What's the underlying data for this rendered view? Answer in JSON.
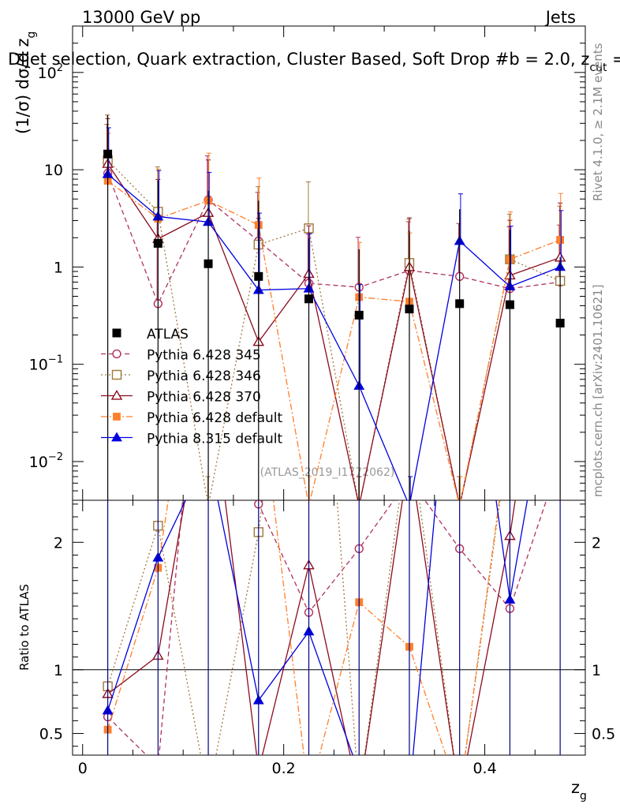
{
  "header": {
    "left": "13000 GeV pp",
    "right": "Jets"
  },
  "chart_data": {
    "type": "scatter",
    "title": "Dijet selection, Quark extraction, Cluster Based, Soft Drop #b = 2.0, z_cut =",
    "title_parts": {
      "main": "Dijet selection, Quark extraction, Cluster Based, Soft Drop #b = 2.0, z",
      "sub": "cut",
      "tail": " ="
    },
    "ylabel_parts": {
      "main": "(1/σ) dσ/d z",
      "sub": "g"
    },
    "xlabel_parts": {
      "main": "z",
      "sub": "g"
    },
    "ratio_ylabel": "Ratio to ATLAS",
    "analysis_tag": "(ATLAS_2019_I1772062)",
    "side_labels": {
      "rivet": "Rivet 4.1.0, ≥ 2.1M events",
      "mcplots": "mcplots.cern.ch [arXiv:2401.10621]"
    },
    "x_range": [
      -0.01,
      0.5
    ],
    "y_range": [
      0.004,
      300
    ],
    "y_scale": "log",
    "ratio_range": [
      0.33,
      2.33
    ],
    "x_ticks": [
      0,
      0.2,
      0.4
    ],
    "x_tick_labels": [
      "0",
      "0.2",
      "0.4"
    ],
    "y_ticks": [
      0.01,
      0.1,
      1,
      10,
      100
    ],
    "y_tick_labels": [
      {
        "base": "10",
        "exp": "−2"
      },
      {
        "base": "10",
        "exp": "−1"
      },
      {
        "base": "1",
        "exp": ""
      },
      {
        "base": "10",
        "exp": ""
      },
      {
        "base": "10",
        "exp": "2"
      }
    ],
    "ratio_ticks": [
      0.5,
      1,
      2
    ],
    "ratio_tick_labels": [
      "0.5",
      "1",
      "2"
    ],
    "legend_position": "bottom-left",
    "x": [
      0.025,
      0.075,
      0.125,
      0.175,
      0.225,
      0.275,
      0.325,
      0.375,
      0.425,
      0.475
    ],
    "data": {
      "name": "ATLAS",
      "values": [
        14.5,
        1.75,
        1.08,
        0.8,
        0.47,
        0.32,
        0.37,
        0.42,
        0.41,
        0.265
      ],
      "err_up": [
        22,
        6,
        5,
        4,
        1.5,
        1.2,
        2,
        3.5,
        2,
        1
      ],
      "err_down": [
        0.001,
        0.001,
        0.001,
        0.001,
        0.001,
        0.001,
        0.001,
        0.001,
        0.001,
        0.001
      ]
    },
    "series": [
      {
        "name": "Pythia 6.428 345",
        "color": "#b03060",
        "dash": "6,4",
        "marker": "open-circle",
        "values": [
          9.2,
          0.42,
          4.9,
          1.85,
          0.68,
          0.62,
          0.92,
          0.8,
          0.6,
          0.7
        ],
        "err_up": [
          20,
          3,
          9,
          4,
          1.5,
          1.4,
          2,
          2,
          2,
          2
        ]
      },
      {
        "name": "Pythia 6.428 346",
        "color": "#a0783c",
        "dash": "2,3",
        "marker": "open-square",
        "values": [
          12.5,
          3.7,
          0.0035,
          1.7,
          2.5,
          0.0035,
          1.1,
          0.0035,
          1.2,
          0.72
        ],
        "err_up": [
          24,
          7,
          0.0035,
          5,
          5,
          0.0035,
          2,
          0.0035,
          2.3,
          3.5
        ]
      },
      {
        "name": "Pythia 6.428 370",
        "color": "#8b0a1e",
        "dash": "",
        "marker": "open-triangle",
        "values": [
          11.5,
          1.95,
          3.6,
          0.17,
          0.85,
          0.0035,
          1.0,
          0.0035,
          0.82,
          1.25
        ],
        "err_up": [
          22,
          6,
          9,
          3,
          1.8,
          0.0035,
          2.2,
          0.0035,
          2.2,
          3.3
        ]
      },
      {
        "name": "Pythia 6.428 default",
        "color": "#ff7f2a",
        "dash": "8,3,2,3",
        "marker": "filled-square",
        "values": [
          7.7,
          3.15,
          4.8,
          2.7,
          0.0035,
          0.49,
          0.44,
          0.0035,
          1.2,
          1.9
        ],
        "err_up": [
          16,
          7,
          10,
          5.5,
          0.0035,
          1.3,
          1.8,
          0.0035,
          2.5,
          3.8
        ]
      },
      {
        "name": "Pythia 8.315 default",
        "color": "#0000e0",
        "dash": "",
        "marker": "filled-triangle",
        "values": [
          9.0,
          3.3,
          2.9,
          0.58,
          0.6,
          0.06,
          0.0035,
          1.85,
          0.63,
          1.0
        ],
        "err_up": [
          18,
          6.5,
          6.5,
          3,
          1.6,
          0.6,
          0.0035,
          3.8,
          2,
          2.8
        ]
      }
    ],
    "ratio_series": [
      {
        "name": "Pythia 6.428 345",
        "values": [
          0.63,
          0.24,
          4.5,
          2.3,
          1.45,
          1.95,
          2.5,
          1.95,
          1.48,
          2.65
        ]
      },
      {
        "name": "Pythia 6.428 346",
        "values": [
          0.87,
          2.13,
          0.01,
          2.08,
          5.3,
          0.01,
          2.9,
          0.01,
          2.9,
          2.7
        ]
      },
      {
        "name": "Pythia 6.428 370",
        "values": [
          0.81,
          1.11,
          3.4,
          0.21,
          1.82,
          0.01,
          2.7,
          0.01,
          2.05,
          4.7
        ]
      },
      {
        "name": "Pythia 6.428 default",
        "values": [
          0.53,
          1.8,
          4.4,
          3.3,
          0.01,
          1.53,
          1.18,
          0.01,
          2.95,
          7.2
        ]
      },
      {
        "name": "Pythia 8.315 default",
        "values": [
          0.68,
          1.88,
          2.7,
          0.76,
          1.3,
          0.19,
          0.01,
          4.4,
          1.55,
          3.8
        ]
      }
    ]
  }
}
